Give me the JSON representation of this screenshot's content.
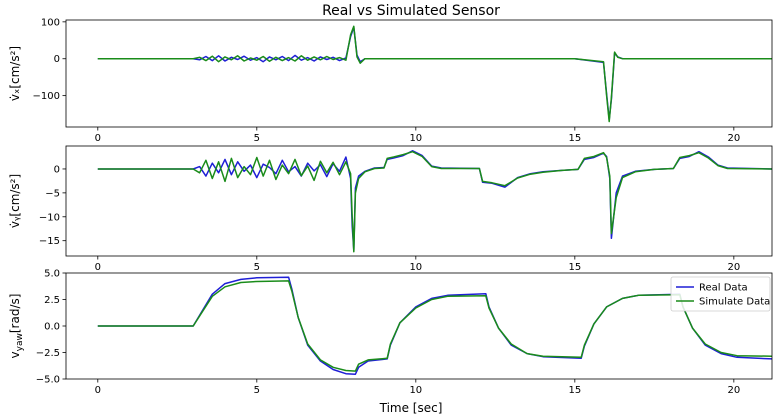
{
  "chart_data": {
    "type": "line",
    "title": "Real vs Simulated Sensor",
    "xlabel": "Time [sec]",
    "xlim": [
      -1,
      21.2
    ],
    "xticks": [
      0,
      5,
      10,
      15,
      20
    ],
    "legend": {
      "placement": "top-right",
      "entries": [
        "Real Data",
        "Simulate Data"
      ]
    },
    "colors": {
      "Real Data": "#1f1fd6",
      "Simulate Data": "#1a8c1a"
    },
    "panels": [
      {
        "id": "vx",
        "ylabel": "v̇ₓ[cm/s²]",
        "ylim": [
          -185,
          105
        ],
        "yticks": [
          100,
          0,
          -100
        ],
        "series": [
          {
            "name": "Real Data",
            "x": [
              0,
              3.0,
              3.2,
              3.4,
              3.6,
              3.8,
              4.0,
              4.2,
              4.4,
              4.6,
              4.8,
              5.0,
              5.2,
              5.4,
              5.6,
              5.8,
              6.0,
              6.2,
              6.4,
              6.6,
              6.8,
              7.0,
              7.2,
              7.4,
              7.6,
              7.8,
              7.95,
              8.05,
              8.15,
              8.25,
              8.4,
              9.0,
              12.0,
              15.0,
              15.9,
              16.0,
              16.08,
              16.15,
              16.25,
              16.35,
              16.5,
              18.0,
              21.2
            ],
            "y": [
              0,
              0,
              -3,
              6,
              -5,
              8,
              -6,
              4,
              -2,
              7,
              -4,
              3,
              -8,
              5,
              -3,
              6,
              -5,
              9,
              -4,
              3,
              -6,
              5,
              -2,
              4,
              -5,
              2,
              60,
              85,
              10,
              -8,
              0,
              0,
              0,
              0,
              -10,
              -95,
              -165,
              -110,
              15,
              5,
              0,
              0,
              0
            ]
          },
          {
            "name": "Simulate Data",
            "x": [
              0,
              3.0,
              3.2,
              3.4,
              3.6,
              3.8,
              4.0,
              4.2,
              4.4,
              4.6,
              4.8,
              5.0,
              5.2,
              5.4,
              5.6,
              5.8,
              6.0,
              6.2,
              6.4,
              6.6,
              6.8,
              7.0,
              7.2,
              7.4,
              7.6,
              7.8,
              7.95,
              8.05,
              8.15,
              8.25,
              8.4,
              9.0,
              12.0,
              15.0,
              15.9,
              16.0,
              16.08,
              16.15,
              16.25,
              16.35,
              16.5,
              18.0,
              21.2
            ],
            "y": [
              0,
              0,
              4,
              -5,
              7,
              -8,
              5,
              -3,
              8,
              -6,
              2,
              -4,
              6,
              -7,
              4,
              -5,
              3,
              -6,
              8,
              -4,
              5,
              -3,
              6,
              -2,
              3,
              -4,
              65,
              88,
              5,
              -12,
              0,
              0,
              0,
              0,
              -8,
              -100,
              -170,
              -105,
              18,
              4,
              0,
              0,
              0
            ]
          }
        ]
      },
      {
        "id": "vy",
        "ylabel": "v̇ᵧ[cm/s²]",
        "ylim": [
          -18.2,
          4.8
        ],
        "yticks": [
          0,
          -5,
          -10,
          -15
        ],
        "series": [
          {
            "name": "Real Data",
            "x": [
              0,
              3.0,
              3.2,
              3.4,
              3.6,
              3.8,
              4.0,
              4.2,
              4.4,
              4.6,
              4.8,
              5.0,
              5.2,
              5.4,
              5.6,
              5.8,
              6.0,
              6.2,
              6.4,
              6.6,
              6.8,
              7.0,
              7.2,
              7.4,
              7.6,
              7.8,
              7.95,
              8.0,
              8.05,
              8.1,
              8.2,
              8.4,
              8.7,
              9.0,
              9.1,
              9.3,
              9.6,
              9.9,
              10.2,
              10.5,
              10.8,
              12.0,
              12.1,
              12.4,
              12.8,
              13.2,
              13.6,
              14.0,
              14.6,
              15.1,
              15.3,
              15.6,
              15.9,
              16.0,
              16.1,
              16.15,
              16.3,
              16.5,
              16.9,
              17.5,
              18.1,
              18.3,
              18.6,
              18.9,
              19.2,
              19.5,
              19.8,
              21.2
            ],
            "y": [
              0,
              0,
              0.5,
              -1.5,
              1.2,
              -0.8,
              2.0,
              -1.2,
              1.5,
              -0.5,
              0.8,
              -1.8,
              1.0,
              0.3,
              -1.0,
              1.8,
              -0.6,
              0.5,
              -1.5,
              1.2,
              -0.4,
              0.9,
              -1.6,
              1.1,
              -0.5,
              2.5,
              -2,
              -12,
              -17,
              -4,
              -1.5,
              -0.5,
              0.2,
              0.3,
              2.0,
              2.3,
              2.8,
              3.8,
              2.8,
              0.6,
              0.2,
              0.1,
              -2.8,
              -3.0,
              -3.8,
              -1.8,
              -1.0,
              -0.6,
              -0.3,
              -0.1,
              2.0,
              2.4,
              3.3,
              2.6,
              -2,
              -14.5,
              -5,
              -1.5,
              -0.5,
              -0.1,
              0.1,
              2.2,
              2.6,
              3.6,
              2.5,
              0.8,
              0.2,
              0
            ]
          },
          {
            "name": "Simulate Data",
            "x": [
              0,
              3.0,
              3.2,
              3.4,
              3.6,
              3.8,
              4.0,
              4.2,
              4.4,
              4.6,
              4.8,
              5.0,
              5.2,
              5.4,
              5.6,
              5.8,
              6.0,
              6.2,
              6.4,
              6.6,
              6.8,
              7.0,
              7.2,
              7.4,
              7.6,
              7.8,
              7.95,
              8.0,
              8.05,
              8.1,
              8.2,
              8.4,
              8.7,
              9.0,
              9.1,
              9.3,
              9.6,
              9.9,
              10.2,
              10.5,
              10.8,
              12.0,
              12.1,
              12.4,
              12.8,
              13.2,
              13.6,
              14.0,
              14.6,
              15.1,
              15.3,
              15.6,
              15.9,
              16.0,
              16.1,
              16.15,
              16.3,
              16.5,
              16.9,
              17.5,
              18.1,
              18.3,
              18.6,
              18.9,
              19.2,
              19.5,
              19.8,
              21.2
            ],
            "y": [
              0,
              0,
              -0.8,
              1.8,
              -2.0,
              1.5,
              -2.6,
              2.2,
              -1.8,
              0.5,
              -1.2,
              2.4,
              -1.5,
              1.8,
              -2.2,
              0.8,
              -1.0,
              2.0,
              -1.4,
              0.6,
              -2.4,
              1.6,
              -0.8,
              1.4,
              -1.2,
              1.5,
              -1,
              -10,
              -17.3,
              -5,
              -2,
              -0.6,
              0.1,
              0.2,
              2.2,
              2.5,
              3.0,
              3.6,
              2.6,
              0.5,
              0.1,
              0.1,
              -2.6,
              -2.9,
              -3.5,
              -1.9,
              -1.1,
              -0.7,
              -0.3,
              -0.1,
              2.2,
              2.6,
              3.4,
              2.4,
              -1.5,
              -13.5,
              -6,
              -1.8,
              -0.6,
              -0.1,
              0.1,
              2.4,
              2.8,
              3.4,
              2.3,
              0.7,
              0.1,
              0
            ]
          }
        ]
      },
      {
        "id": "vyaw",
        "ylabel": "vyaw[rad/s]",
        "ylabel_main": "v",
        "ylabel_sub": "yaw",
        "ylabel_rest": "[rad/s]",
        "ylim": [
          -5.0,
          5.0
        ],
        "yticks": [
          5.0,
          2.5,
          0.0,
          -2.5,
          -5.0
        ],
        "ytick_labels": [
          "5.0",
          "2.5",
          "0.0",
          "−2.5",
          "−5.0"
        ],
        "series": [
          {
            "name": "Real Data",
            "x": [
              0,
              3.0,
              3.3,
              3.6,
              4.0,
              4.5,
              5.0,
              6.0,
              6.1,
              6.3,
              6.6,
              7.0,
              7.4,
              7.8,
              8.1,
              8.2,
              8.5,
              9.1,
              9.2,
              9.5,
              10.0,
              10.5,
              11.0,
              12.2,
              12.3,
              12.6,
              13.0,
              13.5,
              14.0,
              15.2,
              15.3,
              15.6,
              16.0,
              16.5,
              17.0,
              18.3,
              18.4,
              18.7,
              19.1,
              19.6,
              20.1,
              21.2
            ],
            "y": [
              0,
              0,
              1.5,
              3.0,
              4.0,
              4.4,
              4.55,
              4.6,
              3.5,
              0.8,
              -1.8,
              -3.3,
              -4.1,
              -4.5,
              -4.55,
              -3.9,
              -3.3,
              -3.1,
              -1.8,
              0.3,
              1.8,
              2.6,
              2.9,
              3.05,
              1.8,
              -0.2,
              -1.8,
              -2.6,
              -2.9,
              -3.05,
              -1.9,
              0.2,
              1.8,
              2.6,
              2.9,
              3.0,
              1.8,
              -0.2,
              -1.8,
              -2.6,
              -2.95,
              -3.1
            ]
          },
          {
            "name": "Simulate Data",
            "x": [
              0,
              3.0,
              3.3,
              3.6,
              4.0,
              4.5,
              5.0,
              6.0,
              6.1,
              6.3,
              6.6,
              7.0,
              7.4,
              7.8,
              8.1,
              8.2,
              8.5,
              9.1,
              9.2,
              9.5,
              10.0,
              10.5,
              11.0,
              12.2,
              12.3,
              12.6,
              13.0,
              13.5,
              14.0,
              15.2,
              15.3,
              15.6,
              16.0,
              16.5,
              17.0,
              18.3,
              18.4,
              18.7,
              19.1,
              19.6,
              20.1,
              21.2
            ],
            "y": [
              0,
              0,
              1.4,
              2.8,
              3.7,
              4.1,
              4.2,
              4.25,
              3.3,
              0.8,
              -1.7,
              -3.2,
              -3.9,
              -4.2,
              -4.25,
              -3.6,
              -3.2,
              -3.05,
              -1.7,
              0.3,
              1.7,
              2.5,
              2.8,
              2.85,
              1.7,
              -0.2,
              -1.7,
              -2.6,
              -2.85,
              -2.95,
              -1.8,
              0.2,
              1.8,
              2.6,
              2.9,
              2.95,
              1.8,
              -0.2,
              -1.7,
              -2.5,
              -2.8,
              -2.85
            ]
          }
        ]
      }
    ]
  }
}
